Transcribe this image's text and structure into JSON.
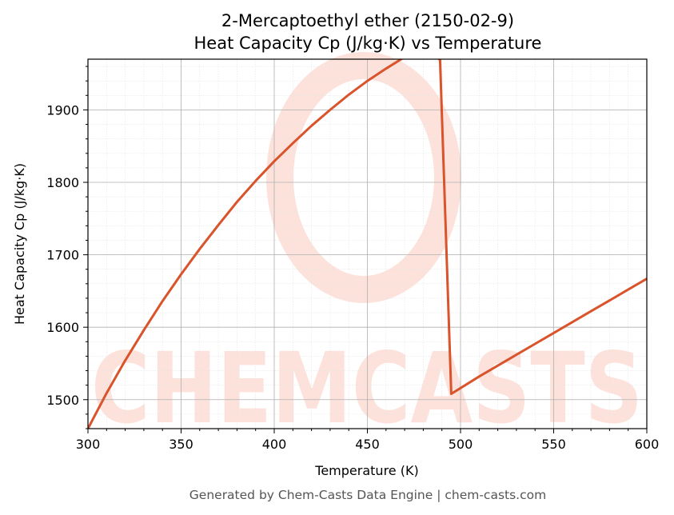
{
  "chart_data": {
    "type": "line",
    "title_line1": "2-Mercaptoethyl ether (2150-02-9)",
    "title_line2": "Heat Capacity Cp (J/kg·K) vs Temperature",
    "xlabel": "Temperature (K)",
    "ylabel": "Heat Capacity Cp (J/kg·K)",
    "xlim": [
      300,
      600
    ],
    "ylim": [
      1460,
      1970
    ],
    "xticks": [
      300,
      350,
      400,
      450,
      500,
      550,
      600
    ],
    "yticks": [
      1500,
      1600,
      1700,
      1800,
      1900
    ],
    "grid": true,
    "line_color": "#d9532b",
    "series": [
      {
        "x": [
          300,
          310,
          320,
          330,
          340,
          350,
          360,
          370,
          380,
          390,
          400,
          410,
          420,
          430,
          440,
          450,
          460,
          470,
          480,
          489,
          495,
          500,
          510,
          520,
          530,
          540,
          550,
          560,
          570,
          580,
          590,
          600
        ],
        "y": [
          1460,
          1509,
          1554,
          1596,
          1636,
          1673,
          1708,
          1741,
          1773,
          1802,
          1829,
          1854,
          1878,
          1900,
          1921,
          1940,
          1957,
          1973,
          1987,
          1969,
          1508,
          1516,
          1532,
          1547,
          1562,
          1577,
          1592,
          1607,
          1622,
          1637,
          1652,
          1667
        ]
      }
    ],
    "watermark": "CHEMCASTS"
  },
  "footer": "Generated by Chem-Casts Data Engine | chem-casts.com",
  "colors": {
    "watermark": "#fde2dc",
    "grid_major": "#b0b0b0",
    "grid_minor": "#e4e4e4"
  }
}
